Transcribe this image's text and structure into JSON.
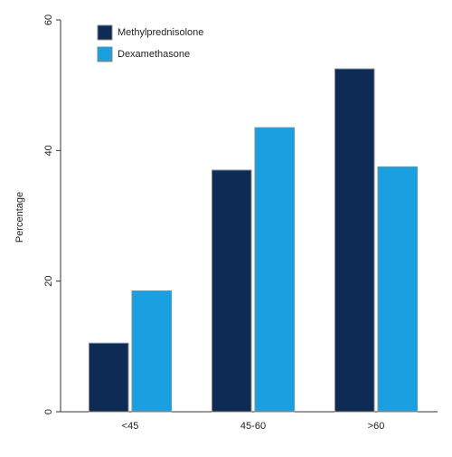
{
  "chart_data": {
    "type": "bar",
    "y_label": "Percentage",
    "categories": [
      "<45",
      "45-60",
      ">60"
    ],
    "series": [
      {
        "name": "Methylprednisolone",
        "color": "#0d2b55",
        "values": [
          10.5,
          37,
          52.5
        ]
      },
      {
        "name": "Dexamethasone",
        "color": "#1a9fe0",
        "values": [
          18.5,
          43.5,
          37.5
        ]
      }
    ],
    "ylim": [
      0,
      60
    ],
    "yticks": [
      0,
      20,
      40,
      60
    ],
    "legend": "upper left"
  }
}
